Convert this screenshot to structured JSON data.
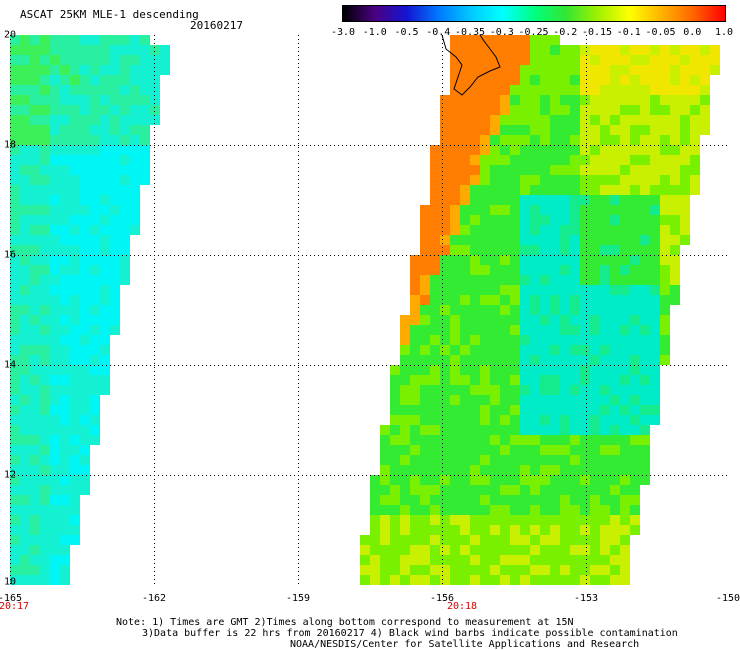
{
  "title": "ASCAT 25KM MLE-1 descending",
  "date": "20160217",
  "colorbar": {
    "labels": [
      "-3.0",
      "-1.0",
      "-0.5",
      "-0.4",
      "-0.35",
      "-0.3",
      "-0.25",
      "-0.2",
      "-0.15",
      "-0.1",
      "-0.05",
      "0.0",
      "1.0"
    ],
    "colors": [
      "#000000",
      "#4b0082",
      "#1414d2",
      "#0078ff",
      "#00c8ff",
      "#00ffff",
      "#00ff80",
      "#32e632",
      "#a0f000",
      "#ffff00",
      "#ffb400",
      "#ff6400",
      "#ff0000"
    ]
  },
  "lat_labels": [
    "20",
    "18",
    "16",
    "14",
    "12",
    "10"
  ],
  "lon_labels": [
    "-165",
    "-162",
    "-159",
    "-156",
    "-153",
    "-150"
  ],
  "swath_times": [
    "20:17",
    "20:18"
  ],
  "notes": [
    "Note: 1) Times are GMT 2)Times along bottom correspond to measurement at 15N",
    "3)Data buffer is 22 hrs from 20160217 4) Black wind barbs indicate possible contamination",
    "NOAA/NESDIS/Center for Satellite Applications and Research"
  ]
}
